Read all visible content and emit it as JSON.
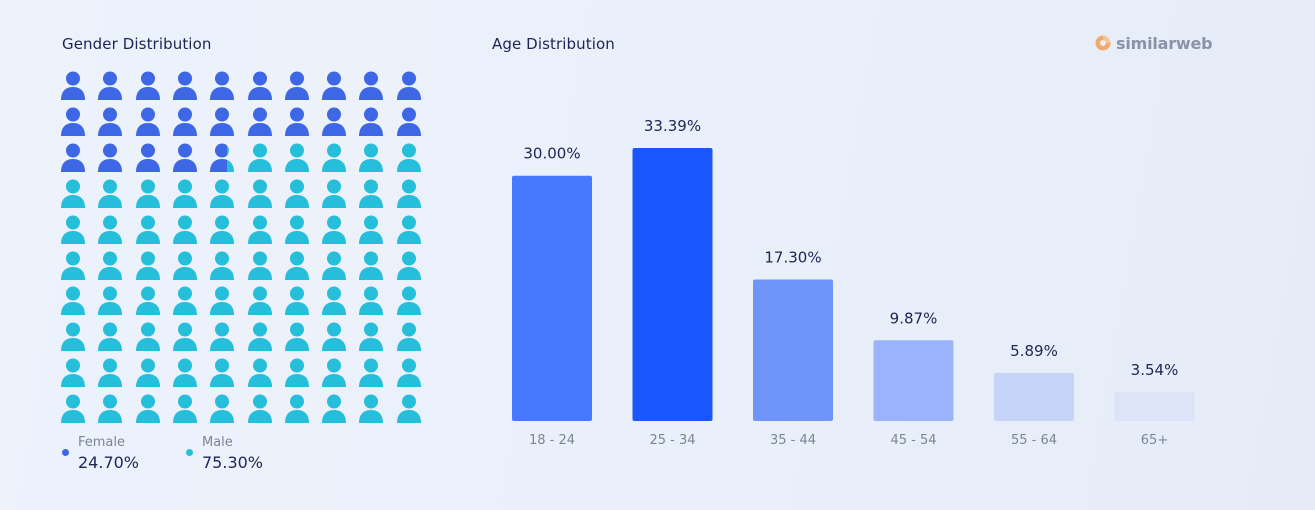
{
  "gender": {
    "title": "Gender Distribution",
    "legend": [
      {
        "label": "Female",
        "value": "24.70%",
        "color": "#3e67e6"
      },
      {
        "label": "Male",
        "value": "75.30%",
        "color": "#25bfdc"
      }
    ]
  },
  "age": {
    "title": "Age Distribution"
  },
  "brand": {
    "name": "similarweb"
  },
  "colors": {
    "female": "#3e67e6",
    "male": "#25bfdc",
    "brand_mark": "#f4a96b"
  },
  "chart_data": [
    {
      "type": "waffle",
      "title": "Gender Distribution",
      "series": [
        {
          "name": "Female",
          "value": 24.7,
          "color": "#3e67e6"
        },
        {
          "name": "Male",
          "value": 75.3,
          "color": "#25bfdc"
        }
      ],
      "grid": {
        "rows": 10,
        "cols": 10
      }
    },
    {
      "type": "bar",
      "title": "Age Distribution",
      "categories": [
        "18 - 24",
        "25 - 34",
        "35 - 44",
        "45 - 54",
        "55 - 64",
        "65+"
      ],
      "values": [
        30.0,
        33.39,
        17.3,
        9.87,
        5.89,
        3.54
      ],
      "value_labels": [
        "30.00%",
        "33.39%",
        "17.30%",
        "9.87%",
        "5.89%",
        "3.54%"
      ],
      "colors": [
        "#4679fd",
        "#1a56fe",
        "#6f95fb",
        "#9bb3fb",
        "#c7d4f9",
        "#dde4fa"
      ],
      "ylim": [
        0,
        33.39
      ]
    }
  ]
}
